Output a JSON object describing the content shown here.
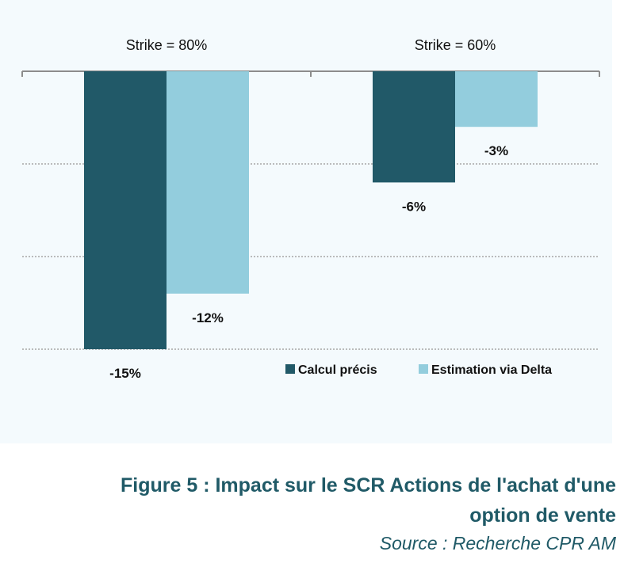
{
  "chart_data": {
    "type": "bar",
    "categories": [
      "Strike = 80%",
      "Strike = 60%"
    ],
    "series": [
      {
        "name": "Calcul précis",
        "values": [
          -15,
          -6
        ],
        "labels": [
          "-15%",
          "-6%"
        ],
        "color": "#215968"
      },
      {
        "name": "Estimation via Delta",
        "values": [
          -12,
          -3
        ],
        "labels": [
          "-12%",
          "-3%"
        ],
        "color": "#93cddd"
      }
    ],
    "ylim": [
      -15,
      0
    ],
    "grid": true,
    "category_labels_position": "top",
    "legend_position": "bottom-right"
  },
  "caption": {
    "title": "Figure 5 : Impact sur le SCR Actions de l'achat d'une option de vente",
    "source": "Source : Recherche CPR AM"
  }
}
